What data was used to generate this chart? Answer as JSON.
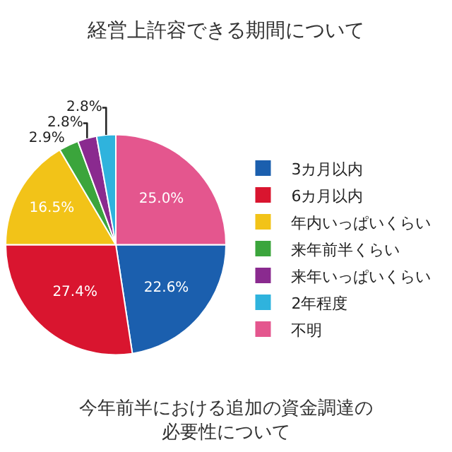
{
  "chart_data": {
    "type": "pie",
    "title": "経営上許容できる期間について",
    "categories": [
      "3カ月以内",
      "6カ月以内",
      "年内いっぱいくらい",
      "来年前半くらい",
      "来年いっぱいくらい",
      "2年程度",
      "不明"
    ],
    "values": [
      22.6,
      27.4,
      16.5,
      2.9,
      2.8,
      2.8,
      25.0
    ],
    "value_labels": [
      "22.6%",
      "27.4%",
      "16.5%",
      "2.9%",
      "2.8%",
      "2.8%",
      "25.0%"
    ],
    "colors": [
      "#1b5fae",
      "#d9152f",
      "#f2c318",
      "#3ba53c",
      "#8a2a8f",
      "#2fb3dd",
      "#e4568e"
    ],
    "legend": "right",
    "annotations": [
      "今年前半における追加の資金調達の必要性について"
    ]
  }
}
